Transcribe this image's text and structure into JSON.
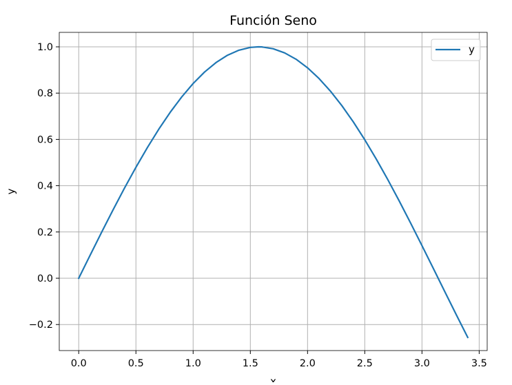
{
  "chart_data": {
    "type": "line",
    "title": "Función Seno",
    "xlabel": "x",
    "ylabel": "y",
    "xlim": [
      -0.17,
      3.57
    ],
    "ylim": [
      -0.3125,
      1.0625
    ],
    "xticks": [
      0.0,
      0.5,
      1.0,
      1.5,
      2.0,
      2.5,
      3.0,
      3.5
    ],
    "xtick_labels": [
      "0.0",
      "0.5",
      "1.0",
      "1.5",
      "2.0",
      "2.5",
      "3.0",
      "3.5"
    ],
    "yticks": [
      -0.2,
      0.0,
      0.2,
      0.4,
      0.6,
      0.8,
      1.0
    ],
    "ytick_labels": [
      "−0.2",
      "0.0",
      "0.2",
      "0.4",
      "0.6",
      "0.8",
      "1.0"
    ],
    "grid": true,
    "legend": {
      "placement": "top-right",
      "entries": [
        "y"
      ]
    },
    "series": [
      {
        "name": "y",
        "color": "#1f77b4",
        "x": [
          0.0,
          0.1,
          0.2,
          0.3,
          0.4,
          0.5,
          0.6,
          0.7,
          0.8,
          0.9,
          1.0,
          1.1,
          1.2,
          1.3,
          1.4,
          1.5,
          1.571,
          1.6,
          1.7,
          1.8,
          1.9,
          2.0,
          2.1,
          2.2,
          2.3,
          2.4,
          2.5,
          2.6,
          2.7,
          2.8,
          2.9,
          3.0,
          3.1,
          3.2,
          3.3,
          3.4
        ],
        "y": [
          0.0,
          0.0998,
          0.1987,
          0.2955,
          0.3894,
          0.4794,
          0.5646,
          0.6442,
          0.7174,
          0.7833,
          0.8415,
          0.8912,
          0.932,
          0.9636,
          0.9854,
          0.9975,
          1.0,
          0.9996,
          0.9917,
          0.9738,
          0.9463,
          0.9093,
          0.8632,
          0.8085,
          0.7457,
          0.6755,
          0.5985,
          0.5155,
          0.4274,
          0.335,
          0.2392,
          0.1411,
          0.0416,
          -0.0584,
          -0.1577,
          -0.2555
        ]
      }
    ]
  }
}
